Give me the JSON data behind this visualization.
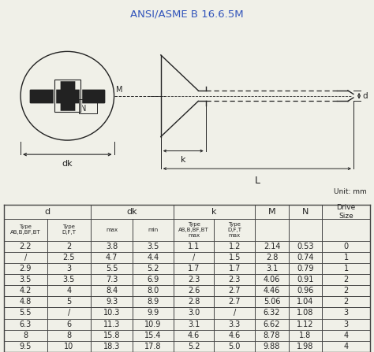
{
  "title": "ANSI/ASME B 16.6.5M",
  "title_color": "#3355bb",
  "unit_text": "Unit: mm",
  "table_data": [
    [
      "2.2",
      "2",
      "3.8",
      "3.5",
      "1.1",
      "1.2",
      "2.14",
      "0.53",
      "0"
    ],
    [
      "/",
      "2.5",
      "4.7",
      "4.4",
      "/",
      "1.5",
      "2.8",
      "0.74",
      "1"
    ],
    [
      "2.9",
      "3",
      "5.5",
      "5.2",
      "1.7",
      "1.7",
      "3.1",
      "0.79",
      "1"
    ],
    [
      "3.5",
      "3.5",
      "7.3",
      "6.9",
      "2.3",
      "2.3",
      "4.06",
      "0.91",
      "2"
    ],
    [
      "4.2",
      "4",
      "8.4",
      "8.0",
      "2.6",
      "2.7",
      "4.46",
      "0.96",
      "2"
    ],
    [
      "4.8",
      "5",
      "9.3",
      "8.9",
      "2.8",
      "2.7",
      "5.06",
      "1.04",
      "2"
    ],
    [
      "5.5",
      "/",
      "10.3",
      "9.9",
      "3.0",
      "/",
      "6.32",
      "1.08",
      "3"
    ],
    [
      "6.3",
      "6",
      "11.3",
      "10.9",
      "3.1",
      "3.3",
      "6.62",
      "1.12",
      "3"
    ],
    [
      "8",
      "8",
      "15.8",
      "15.4",
      "4.6",
      "4.6",
      "8.78",
      "1.8",
      "4"
    ],
    [
      "9.5",
      "10",
      "18.3",
      "17.8",
      "5.2",
      "5.0",
      "9.88",
      "1.98",
      "4"
    ]
  ],
  "background_color": "#f0f0e8",
  "line_color": "#222222",
  "table_line_color": "#444444"
}
